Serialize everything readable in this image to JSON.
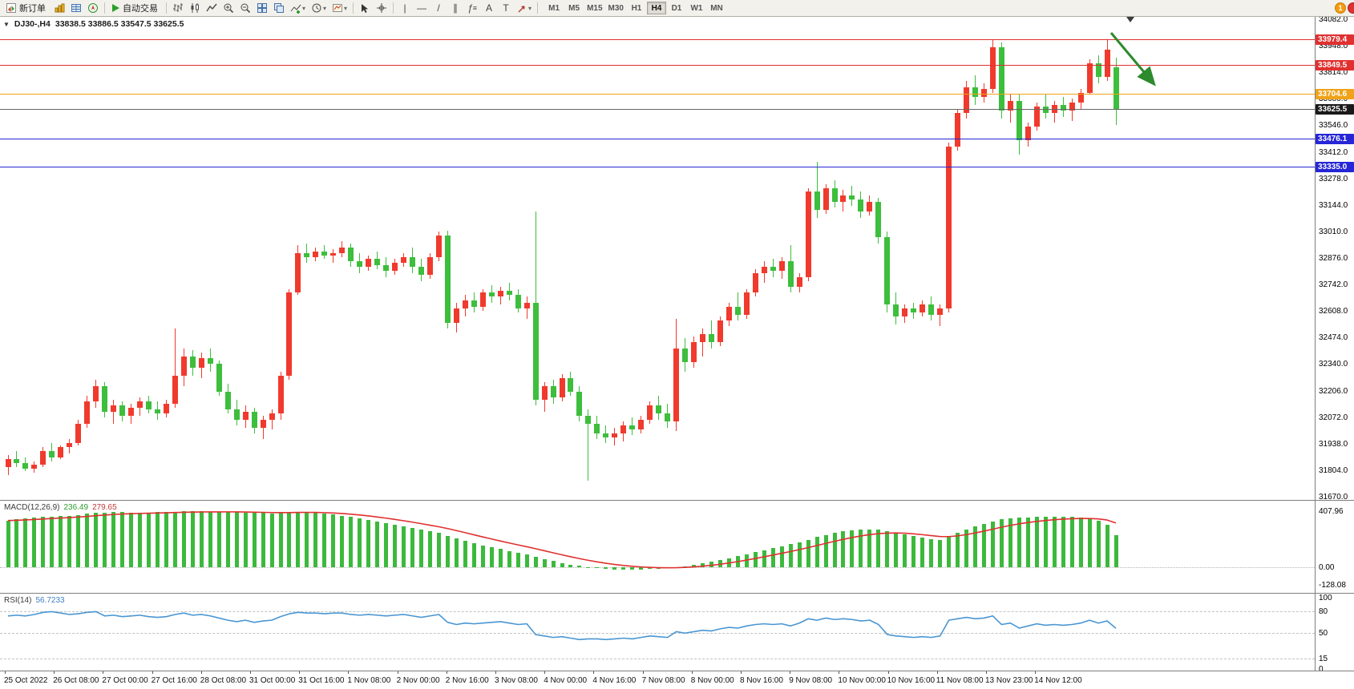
{
  "window": {
    "notification_badge": "1"
  },
  "toolbar": {
    "new_order_label": "新订单",
    "autotrade_label": "自动交易",
    "timeframes": [
      "M1",
      "M5",
      "M15",
      "M30",
      "H1",
      "H4",
      "D1",
      "W1",
      "MN"
    ],
    "active_timeframe": "H4"
  },
  "chart_header": {
    "symbol": "DJ30-,H4",
    "ohlc": "33838.5 33886.5 33547.5 33625.5"
  },
  "main_chart": {
    "axis_labels": [
      "34082.0",
      "33948.0",
      "33814.0",
      "33680.0",
      "33546.0",
      "33412.0",
      "33278.0",
      "33144.0",
      "33010.0",
      "32876.0",
      "32742.0",
      "32608.0",
      "32474.0",
      "32340.0",
      "32206.0",
      "32072.0",
      "31938.0",
      "31804.0",
      "31670.0"
    ],
    "hlines": [
      {
        "price": 33979.4,
        "label": "33979.4",
        "color": "#e03030"
      },
      {
        "price": 33849.5,
        "label": "33849.5",
        "color": "#e03030"
      },
      {
        "price": 33704.6,
        "label": "33704.6",
        "color": "#efa21a"
      },
      {
        "price": 33476.1,
        "label": "33476.1",
        "color": "#2626d8"
      },
      {
        "price": 33335.0,
        "label": "33335.0",
        "color": "#2626d8"
      }
    ],
    "bid": {
      "price": 33625.5,
      "label": "33625.5",
      "tag_bg": "#1a1a1a",
      "line_color": "#666666"
    },
    "colors": {
      "bull": "#f03a2d",
      "bear": "#3dbe3d"
    }
  },
  "chart_data": [
    {
      "type": "candlestick",
      "title": "DJ30-,H4",
      "ylim": [
        31670,
        34082
      ],
      "candles": [
        [
          31820,
          31880,
          31780,
          31860
        ],
        [
          31860,
          31900,
          31820,
          31840
        ],
        [
          31840,
          31870,
          31800,
          31810
        ],
        [
          31810,
          31850,
          31790,
          31830
        ],
        [
          31830,
          31920,
          31820,
          31900
        ],
        [
          31900,
          31940,
          31850,
          31870
        ],
        [
          31870,
          31930,
          31860,
          31920
        ],
        [
          31920,
          31960,
          31890,
          31940
        ],
        [
          31940,
          32060,
          31930,
          32040
        ],
        [
          32040,
          32180,
          32020,
          32150
        ],
        [
          32150,
          32260,
          32120,
          32230
        ],
        [
          32230,
          32250,
          32070,
          32100
        ],
        [
          32100,
          32160,
          32040,
          32130
        ],
        [
          32130,
          32150,
          32050,
          32080
        ],
        [
          32080,
          32140,
          32040,
          32120
        ],
        [
          32120,
          32170,
          32080,
          32150
        ],
        [
          32150,
          32180,
          32090,
          32110
        ],
        [
          32110,
          32150,
          32060,
          32090
        ],
        [
          32090,
          32160,
          32070,
          32140
        ],
        [
          32140,
          32520,
          32120,
          32280
        ],
        [
          32280,
          32420,
          32230,
          32380
        ],
        [
          32380,
          32410,
          32280,
          32320
        ],
        [
          32320,
          32400,
          32270,
          32370
        ],
        [
          32370,
          32420,
          32300,
          32340
        ],
        [
          32340,
          32360,
          32180,
          32200
        ],
        [
          32200,
          32240,
          32090,
          32110
        ],
        [
          32110,
          32160,
          32030,
          32060
        ],
        [
          32060,
          32130,
          32020,
          32100
        ],
        [
          32100,
          32120,
          31990,
          32020
        ],
        [
          32020,
          32080,
          31960,
          32060
        ],
        [
          32060,
          32110,
          32010,
          32090
        ],
        [
          32090,
          32300,
          32060,
          32280
        ],
        [
          32280,
          32720,
          32260,
          32700
        ],
        [
          32700,
          32940,
          32690,
          32900
        ],
        [
          32900,
          32950,
          32850,
          32880
        ],
        [
          32880,
          32930,
          32860,
          32910
        ],
        [
          32910,
          32940,
          32870,
          32890
        ],
        [
          32890,
          32920,
          32850,
          32900
        ],
        [
          32900,
          32960,
          32880,
          32930
        ],
        [
          32930,
          32950,
          32830,
          32860
        ],
        [
          32860,
          32900,
          32800,
          32830
        ],
        [
          32830,
          32890,
          32810,
          32870
        ],
        [
          32870,
          32910,
          32820,
          32840
        ],
        [
          32840,
          32880,
          32780,
          32810
        ],
        [
          32810,
          32870,
          32790,
          32850
        ],
        [
          32850,
          32900,
          32830,
          32880
        ],
        [
          32880,
          32930,
          32800,
          32830
        ],
        [
          32830,
          32870,
          32760,
          32790
        ],
        [
          32790,
          32900,
          32770,
          32880
        ],
        [
          32880,
          33010,
          32860,
          32990
        ],
        [
          32990,
          33015,
          32520,
          32550
        ],
        [
          32550,
          32650,
          32500,
          32620
        ],
        [
          32620,
          32690,
          32580,
          32660
        ],
        [
          32660,
          32700,
          32600,
          32630
        ],
        [
          32630,
          32720,
          32610,
          32700
        ],
        [
          32700,
          32740,
          32650,
          32680
        ],
        [
          32680,
          32730,
          32640,
          32710
        ],
        [
          32710,
          32750,
          32660,
          32690
        ],
        [
          32690,
          32720,
          32600,
          32620
        ],
        [
          32620,
          32680,
          32570,
          32650
        ],
        [
          32650,
          33110,
          32130,
          32160
        ],
        [
          32160,
          32250,
          32100,
          32230
        ],
        [
          32230,
          32260,
          32140,
          32170
        ],
        [
          32170,
          32290,
          32150,
          32270
        ],
        [
          32270,
          32300,
          32180,
          32200
        ],
        [
          32200,
          32230,
          32050,
          32080
        ],
        [
          32080,
          32110,
          31750,
          32040
        ],
        [
          32040,
          32080,
          31960,
          31990
        ],
        [
          31990,
          32030,
          31940,
          31970
        ],
        [
          31970,
          32020,
          31930,
          31990
        ],
        [
          31990,
          32050,
          31950,
          32030
        ],
        [
          32030,
          32070,
          31980,
          32010
        ],
        [
          32010,
          32080,
          31990,
          32060
        ],
        [
          32060,
          32150,
          32040,
          32130
        ],
        [
          32130,
          32180,
          32060,
          32090
        ],
        [
          32090,
          32140,
          32020,
          32050
        ],
        [
          32050,
          32570,
          32000,
          32420
        ],
        [
          32420,
          32470,
          32300,
          32350
        ],
        [
          32350,
          32480,
          32320,
          32450
        ],
        [
          32450,
          32520,
          32380,
          32490
        ],
        [
          32490,
          32560,
          32420,
          32450
        ],
        [
          32450,
          32580,
          32430,
          32560
        ],
        [
          32560,
          32650,
          32530,
          32630
        ],
        [
          32630,
          32700,
          32560,
          32590
        ],
        [
          32590,
          32720,
          32570,
          32700
        ],
        [
          32700,
          32820,
          32680,
          32800
        ],
        [
          32800,
          32860,
          32750,
          32830
        ],
        [
          32830,
          32870,
          32780,
          32810
        ],
        [
          32810,
          32880,
          32770,
          32860
        ],
        [
          32860,
          32940,
          32700,
          32730
        ],
        [
          32730,
          32800,
          32700,
          32780
        ],
        [
          32780,
          33230,
          32760,
          33210
        ],
        [
          33210,
          33360,
          33080,
          33120
        ],
        [
          33120,
          33250,
          33100,
          33230
        ],
        [
          33230,
          33270,
          33130,
          33160
        ],
        [
          33160,
          33220,
          33110,
          33190
        ],
        [
          33190,
          33240,
          33140,
          33170
        ],
        [
          33170,
          33210,
          33080,
          33110
        ],
        [
          33110,
          33190,
          33090,
          33160
        ],
        [
          33160,
          33180,
          32950,
          32980
        ],
        [
          32980,
          33010,
          32600,
          32640
        ],
        [
          32640,
          32700,
          32540,
          32580
        ],
        [
          32580,
          32640,
          32550,
          32620
        ],
        [
          32620,
          32650,
          32570,
          32600
        ],
        [
          32600,
          32660,
          32580,
          32640
        ],
        [
          32640,
          32680,
          32560,
          32590
        ],
        [
          32590,
          32640,
          32530,
          32620
        ],
        [
          32620,
          33460,
          32600,
          33440
        ],
        [
          33440,
          33630,
          33420,
          33610
        ],
        [
          33610,
          33770,
          33580,
          33740
        ],
        [
          33740,
          33800,
          33650,
          33690
        ],
        [
          33690,
          33760,
          33660,
          33730
        ],
        [
          33730,
          33975,
          33710,
          33940
        ],
        [
          33940,
          33965,
          33580,
          33620
        ],
        [
          33620,
          33700,
          33560,
          33670
        ],
        [
          33670,
          33700,
          33400,
          33470
        ],
        [
          33470,
          33560,
          33440,
          33540
        ],
        [
          33540,
          33660,
          33520,
          33640
        ],
        [
          33640,
          33700,
          33580,
          33610
        ],
        [
          33610,
          33670,
          33560,
          33650
        ],
        [
          33650,
          33690,
          33590,
          33620
        ],
        [
          33620,
          33680,
          33570,
          33660
        ],
        [
          33660,
          33730,
          33630,
          33710
        ],
        [
          33710,
          33880,
          33700,
          33860
        ],
        [
          33860,
          33900,
          33760,
          33790
        ],
        [
          33790,
          33979,
          33770,
          33930
        ],
        [
          33838.5,
          33886.5,
          33547.5,
          33625.5
        ]
      ]
    },
    {
      "type": "bar",
      "title": "MACD(12,26,9)",
      "ylim": [
        -190,
        480
      ],
      "values": [
        340,
        348,
        354,
        360,
        365,
        369,
        372,
        375,
        381,
        388,
        394,
        399,
        402,
        401,
        399,
        398,
        399,
        401,
        403,
        405,
        406,
        407,
        406,
        405,
        404,
        403,
        401,
        399,
        396,
        394,
        392,
        395,
        399,
        403,
        401,
        397,
        391,
        384,
        376,
        367,
        357,
        346,
        335,
        323,
        311,
        299,
        287,
        274,
        261,
        249,
        228,
        208,
        190,
        174,
        159,
        145,
        132,
        119,
        107,
        95,
        78,
        61,
        45,
        31,
        19,
        9,
        1,
        -6,
        -11,
        -15,
        -17,
        -17,
        -16,
        -14,
        -11,
        -7,
        -1,
        7,
        17,
        28,
        40,
        53,
        67,
        81,
        96,
        111,
        125,
        139,
        153,
        167,
        183,
        201,
        219,
        235,
        249,
        261,
        269,
        273,
        275,
        273,
        265,
        253,
        239,
        225,
        213,
        203,
        197,
        221,
        249,
        275,
        297,
        315,
        335,
        349,
        357,
        361,
        363,
        365,
        367,
        368,
        368,
        366,
        361,
        353,
        341,
        310,
        236
      ]
    },
    {
      "type": "line",
      "title": "RSI(14)",
      "ylim": [
        0,
        100
      ],
      "values": [
        74,
        75,
        74,
        76,
        79,
        80,
        78,
        76,
        77,
        79,
        80,
        74,
        75,
        73,
        74,
        75,
        73,
        72,
        73,
        76,
        78,
        75,
        76,
        74,
        71,
        68,
        66,
        68,
        65,
        67,
        68,
        73,
        77,
        79,
        78,
        78,
        77,
        78,
        78,
        76,
        75,
        76,
        75,
        74,
        75,
        76,
        74,
        72,
        74,
        76,
        65,
        62,
        64,
        63,
        64,
        65,
        66,
        64,
        62,
        63,
        48,
        46,
        44,
        45,
        43,
        41,
        42,
        42,
        41,
        42,
        43,
        42,
        44,
        46,
        45,
        44,
        52,
        50,
        52,
        54,
        53,
        56,
        58,
        57,
        60,
        62,
        63,
        62,
        63,
        60,
        64,
        70,
        68,
        71,
        69,
        70,
        69,
        67,
        68,
        62,
        48,
        46,
        45,
        44,
        45,
        44,
        46,
        68,
        70,
        72,
        70,
        71,
        74,
        62,
        64,
        57,
        60,
        63,
        61,
        62,
        61,
        62,
        64,
        68,
        64,
        67,
        56.7
      ]
    }
  ],
  "macd": {
    "name": "MACD(12,26,9)",
    "value_main": "236.49",
    "value_signal": "279.65",
    "axis_labels": [
      {
        "text": "407.96",
        "value": 407.96
      },
      {
        "text": "0.00",
        "value": 0
      },
      {
        "text": "-128.08",
        "value": -128.08
      }
    ],
    "hist_color": "#3cb93c",
    "signal_color": "#e03030"
  },
  "rsi": {
    "name": "RSI(14)",
    "value": "56.7233",
    "axis_labels": [
      {
        "text": "100",
        "value": 100
      },
      {
        "text": "80",
        "value": 80
      },
      {
        "text": "50",
        "value": 50
      },
      {
        "text": "15",
        "value": 15
      },
      {
        "text": "0",
        "value": 0
      }
    ],
    "levels": [
      80,
      50,
      15
    ],
    "line_color": "#4a96d2"
  },
  "time_axis": {
    "labels": [
      "25 Oct 2022",
      "26 Oct 08:00",
      "27 Oct 00:00",
      "27 Oct 16:00",
      "28 Oct 08:00",
      "31 Oct 00:00",
      "31 Oct 16:00",
      "1 Nov 08:00",
      "2 Nov 00:00",
      "2 Nov 16:00",
      "3 Nov 08:00",
      "4 Nov 00:00",
      "4 Nov 16:00",
      "7 Nov 08:00",
      "8 Nov 00:00",
      "8 Nov 16:00",
      "9 Nov 08:00",
      "10 Nov 00:00",
      "10 Nov 16:00",
      "11 Nov 08:00",
      "13 Nov 23:00",
      "14 Nov 12:00"
    ]
  },
  "annotations": {
    "arrow_color": "#2d8a2d"
  }
}
